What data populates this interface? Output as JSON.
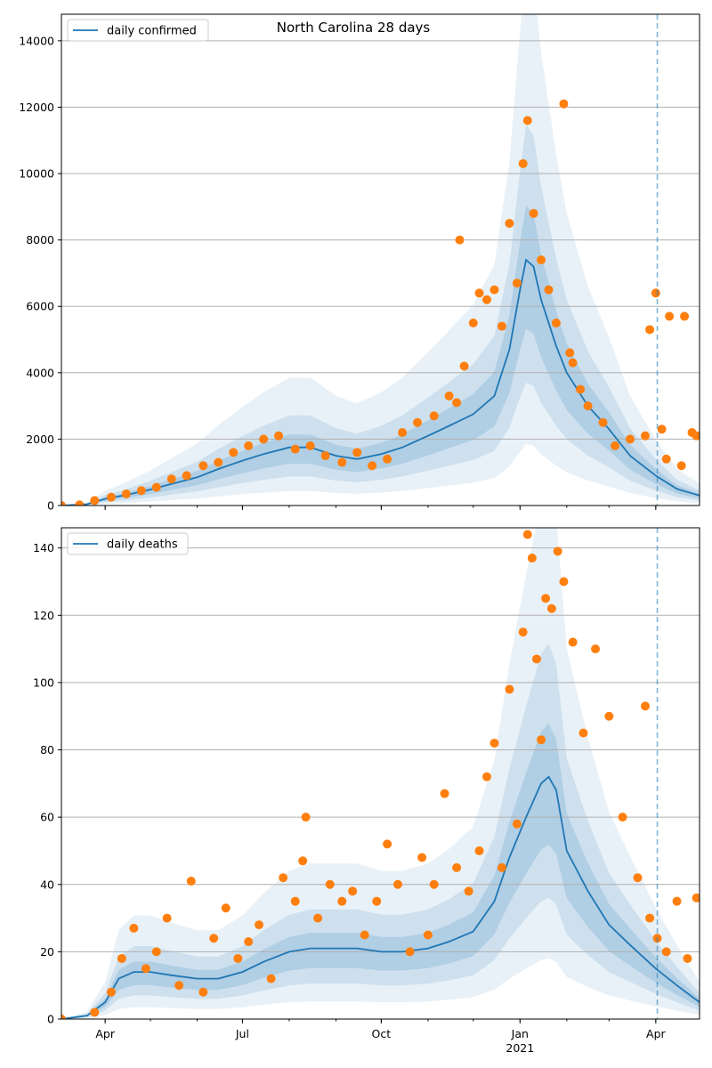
{
  "figure": {
    "title": "North Carolina 28 days",
    "year_label": "2021",
    "x_ticks": [
      "Apr",
      "Jul",
      "Oct",
      "Jan",
      "Apr"
    ],
    "x_tick_dates": [
      "2020-04-01",
      "2020-07-01",
      "2020-10-01",
      "2021-01-01",
      "2021-04-01"
    ],
    "x_range": [
      "2020-03-03",
      "2021-04-30"
    ],
    "forecast_start_date": "2021-04-02"
  },
  "chart_data": [
    {
      "type": "line",
      "title": "North Carolina 28 days",
      "legend": {
        "label": "daily confirmed",
        "position": "top-left"
      },
      "ylim": [
        0,
        14800
      ],
      "y_ticks": [
        0,
        2000,
        4000,
        6000,
        8000,
        10000,
        12000,
        14000
      ],
      "grid": "horizontal",
      "colors": {
        "line": "#1f77b4",
        "points": "#ff7f0e",
        "band": "#1f77b4",
        "forecast_line": "#1f77b4"
      },
      "series": [
        {
          "kind": "line",
          "x": [
            "2020-03-03",
            "2020-03-20",
            "2020-04-01",
            "2020-04-15",
            "2020-05-01",
            "2020-05-15",
            "2020-06-01",
            "2020-06-15",
            "2020-07-01",
            "2020-07-15",
            "2020-08-01",
            "2020-08-15",
            "2020-09-01",
            "2020-09-15",
            "2020-10-01",
            "2020-10-15",
            "2020-11-01",
            "2020-11-15",
            "2020-12-01",
            "2020-12-15",
            "2020-12-25",
            "2021-01-01",
            "2021-01-05",
            "2021-01-10",
            "2021-01-15",
            "2021-01-25",
            "2021-02-01",
            "2021-02-15",
            "2021-03-01",
            "2021-03-15",
            "2021-04-01",
            "2021-04-15",
            "2021-04-30"
          ],
          "y": [
            0,
            40,
            200,
            320,
            480,
            650,
            850,
            1100,
            1350,
            1550,
            1750,
            1750,
            1500,
            1400,
            1550,
            1750,
            2100,
            2400,
            2750,
            3300,
            4700,
            6500,
            7400,
            7200,
            6200,
            4800,
            4000,
            3000,
            2300,
            1500,
            900,
            500,
            300
          ]
        },
        {
          "kind": "scatter",
          "x": [
            "2020-03-03",
            "2020-03-15",
            "2020-03-25",
            "2020-04-05",
            "2020-04-15",
            "2020-04-25",
            "2020-05-05",
            "2020-05-15",
            "2020-05-25",
            "2020-06-05",
            "2020-06-15",
            "2020-06-25",
            "2020-07-05",
            "2020-07-15",
            "2020-07-25",
            "2020-08-05",
            "2020-08-15",
            "2020-08-25",
            "2020-09-05",
            "2020-09-15",
            "2020-09-25",
            "2020-10-05",
            "2020-10-15",
            "2020-10-25",
            "2020-11-05",
            "2020-11-15",
            "2020-11-20",
            "2020-11-25",
            "2020-12-01",
            "2020-12-05",
            "2020-12-10",
            "2020-12-15",
            "2020-12-20",
            "2020-12-25",
            "2020-12-30",
            "2021-01-03",
            "2021-01-06",
            "2021-01-10",
            "2021-01-15",
            "2021-01-20",
            "2021-01-25",
            "2021-01-30",
            "2021-02-05",
            "2021-02-10",
            "2021-02-15",
            "2021-02-25",
            "2021-03-05",
            "2021-03-15",
            "2021-03-25",
            "2021-04-01",
            "2021-04-05",
            "2021-04-10",
            "2021-04-20",
            "2021-04-28",
            "2020-11-22",
            "2021-02-03",
            "2021-03-28",
            "2021-04-08",
            "2021-04-18",
            "2021-04-25"
          ],
          "y": [
            0,
            20,
            150,
            250,
            350,
            450,
            550,
            800,
            900,
            1200,
            1300,
            1600,
            1800,
            2000,
            2100,
            1700,
            1800,
            1500,
            1300,
            1600,
            1200,
            1400,
            2200,
            2500,
            2700,
            3300,
            3100,
            4200,
            5500,
            6400,
            6200,
            6500,
            5400,
            8500,
            6700,
            10300,
            11600,
            8800,
            7400,
            6500,
            5500,
            12100,
            4300,
            3500,
            3000,
            2500,
            1800,
            2000,
            2100,
            6400,
            2300,
            5700,
            5700,
            2100,
            8000,
            4600,
            5300,
            1400,
            1200,
            2200
          ]
        }
      ],
      "bands": "shaded uncertainty bands around the fitted line (three nested levels)"
    },
    {
      "type": "line",
      "legend": {
        "label": "daily deaths",
        "position": "top-left"
      },
      "ylim": [
        0,
        146
      ],
      "y_ticks": [
        0,
        20,
        40,
        60,
        80,
        100,
        120,
        140
      ],
      "grid": "horizontal",
      "colors": {
        "line": "#1f77b4",
        "points": "#ff7f0e",
        "band": "#1f77b4",
        "forecast_line": "#1f77b4"
      },
      "series": [
        {
          "kind": "line",
          "x": [
            "2020-03-03",
            "2020-03-20",
            "2020-04-01",
            "2020-04-10",
            "2020-04-20",
            "2020-05-01",
            "2020-05-15",
            "2020-06-01",
            "2020-06-15",
            "2020-07-01",
            "2020-07-15",
            "2020-08-01",
            "2020-08-15",
            "2020-09-01",
            "2020-09-15",
            "2020-10-01",
            "2020-10-15",
            "2020-11-01",
            "2020-11-15",
            "2020-12-01",
            "2020-12-15",
            "2020-12-25",
            "2021-01-05",
            "2021-01-15",
            "2021-01-20",
            "2021-01-25",
            "2021-02-01",
            "2021-02-15",
            "2021-03-01",
            "2021-03-15",
            "2021-04-01",
            "2021-04-15",
            "2021-04-30"
          ],
          "y": [
            0,
            1,
            5,
            12,
            14,
            14,
            13,
            12,
            12,
            14,
            17,
            20,
            21,
            21,
            21,
            20,
            20,
            21,
            23,
            26,
            35,
            48,
            60,
            70,
            72,
            68,
            50,
            38,
            28,
            22,
            15,
            10,
            5
          ]
        },
        {
          "kind": "scatter",
          "x": [
            "2020-03-03",
            "2020-03-25",
            "2020-04-05",
            "2020-04-12",
            "2020-04-20",
            "2020-04-28",
            "2020-05-05",
            "2020-05-12",
            "2020-05-20",
            "2020-05-28",
            "2020-06-05",
            "2020-06-12",
            "2020-06-20",
            "2020-06-28",
            "2020-07-05",
            "2020-07-12",
            "2020-07-20",
            "2020-07-28",
            "2020-08-05",
            "2020-08-12",
            "2020-08-20",
            "2020-08-28",
            "2020-09-05",
            "2020-09-12",
            "2020-09-20",
            "2020-09-28",
            "2020-10-05",
            "2020-10-12",
            "2020-10-20",
            "2020-10-28",
            "2020-11-05",
            "2020-11-12",
            "2020-11-20",
            "2020-11-28",
            "2020-12-05",
            "2020-12-10",
            "2020-12-15",
            "2020-12-20",
            "2020-12-25",
            "2020-12-30",
            "2021-01-03",
            "2021-01-06",
            "2021-01-09",
            "2021-01-12",
            "2021-01-15",
            "2021-01-18",
            "2021-01-22",
            "2021-01-26",
            "2021-01-30",
            "2021-02-05",
            "2021-02-12",
            "2021-02-20",
            "2021-03-01",
            "2021-03-10",
            "2021-03-20",
            "2021-03-28",
            "2021-04-02",
            "2021-04-08",
            "2021-04-15",
            "2021-04-22",
            "2021-04-28",
            "2020-08-10",
            "2020-11-01",
            "2021-03-25"
          ],
          "y": [
            0,
            2,
            8,
            18,
            27,
            15,
            20,
            30,
            10,
            41,
            8,
            24,
            33,
            18,
            23,
            28,
            12,
            42,
            35,
            60,
            30,
            40,
            35,
            38,
            25,
            35,
            52,
            40,
            20,
            48,
            40,
            67,
            45,
            38,
            50,
            72,
            82,
            45,
            98,
            58,
            115,
            144,
            137,
            107,
            83,
            125,
            122,
            139,
            130,
            112,
            85,
            110,
            90,
            60,
            42,
            30,
            24,
            20,
            35,
            18,
            36,
            47,
            25,
            93
          ]
        }
      ],
      "bands": "shaded uncertainty bands around the fitted line (three nested levels)"
    }
  ]
}
